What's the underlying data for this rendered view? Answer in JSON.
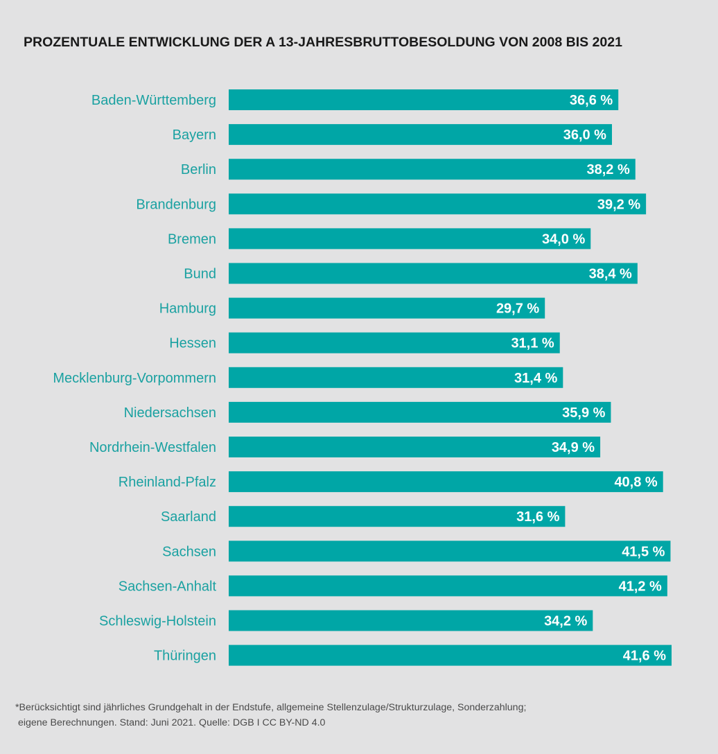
{
  "chart_data": {
    "type": "bar",
    "orientation": "horizontal",
    "title": "PROZENTUALE ENTWICKLUNG DER A 13-JAHRESBRUTTOBESOLDUNG VON 2008 BIS 2021",
    "categories": [
      "Baden-Württemberg",
      "Bayern",
      "Berlin",
      "Brandenburg",
      "Bremen",
      "Bund",
      "Hamburg",
      "Hessen",
      "Mecklenburg-Vorpommern",
      "Niedersachsen",
      "Nordrhein-Westfalen",
      "Rheinland-Pfalz",
      "Saarland",
      "Sachsen",
      "Sachsen-Anhalt",
      "Schleswig-Holstein",
      "Thüringen"
    ],
    "values": [
      36.6,
      36.0,
      38.2,
      39.2,
      34.0,
      38.4,
      29.7,
      31.1,
      31.4,
      35.9,
      34.9,
      40.8,
      31.6,
      41.5,
      41.2,
      34.2,
      41.6
    ],
    "value_labels": [
      "36,6 %",
      "36,0 %",
      "38,2 %",
      "39,2 %",
      "34,0 %",
      "38,4 %",
      "29,7 %",
      "31,1 %",
      "31,4 %",
      "35,9 %",
      "34,9 %",
      "40,8 %",
      "31,6 %",
      "41,5 %",
      "41,2 %",
      "34,2 %",
      "41,6 %"
    ],
    "xlim": [
      0,
      41.6
    ],
    "grid": false,
    "bar_color": "#00a6a6",
    "label_color": "#1aa1a1",
    "background": "#e2e2e3"
  },
  "footnote": {
    "line1": "*Berücksichtigt sind jährliches Grundgehalt in der Endstufe, allgemeine Stellenzulage/Strukturzulage, Sonderzahlung;",
    "line2": " eigene Berechnungen. Stand: Juni 2021. Quelle: DGB I CC BY-ND 4.0"
  }
}
